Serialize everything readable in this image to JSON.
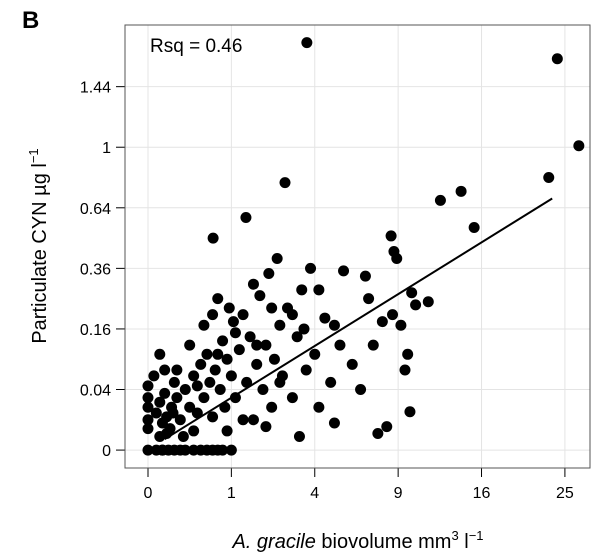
{
  "chart_data": {
    "type": "scatter",
    "panel_label": "B",
    "annotation": "Rsq = 0.46",
    "ylabel_parts": [
      "Particulate CYN µg l",
      "−1"
    ],
    "xlabel_parts": [
      "A. gracile",
      " biovolume mm",
      "3",
      " l",
      "−1"
    ],
    "scale": "sqrt",
    "grid": true,
    "color": "#000000",
    "xlim": [
      -0.076,
      28.1
    ],
    "ylim": [
      -0.0035,
      1.97
    ],
    "xticks": [
      0,
      1,
      4,
      9,
      16,
      25
    ],
    "yticks": [
      0,
      0.04,
      0.16,
      0.36,
      0.64,
      1,
      1.44
    ],
    "series": [
      {
        "type": "scatter",
        "x": [
          0,
          0.01,
          0.03,
          0.06,
          0.1,
          0.15,
          0.2,
          0.3,
          0.4,
          0.5,
          0.6,
          0.7,
          0.8,
          1.0,
          3.3,
          0.02,
          0.05,
          0,
          0,
          0,
          0,
          0,
          0.005,
          0.01,
          0.02,
          0.03,
          0.04,
          0.05,
          0.08,
          0.1,
          0.12,
          0.15,
          0.2,
          0.25,
          0.3,
          0.35,
          0.4,
          0.45,
          0.5,
          0.55,
          0.6,
          0.65,
          0.7,
          0.75,
          0.8,
          0.85,
          0.9,
          1.0,
          1.05,
          1.1,
          1.2,
          1.3,
          1.4,
          1.5,
          1.6,
          1.7,
          1.8,
          1.9,
          2.0,
          2.1,
          2.2,
          2.3,
          2.4,
          2.5,
          2.6,
          2.8,
          3.0,
          3.2,
          3.4,
          3.6,
          3.8,
          4.0,
          4.2,
          4.5,
          4.8,
          5.0,
          5.3,
          5.5,
          6.0,
          6.5,
          6.8,
          7.0,
          7.3,
          7.6,
          7.9,
          8.2,
          8.6,
          8.9,
          9.2,
          9.5,
          10.0,
          10.3,
          11.3,
          0.61,
          1.38,
          2.7,
          9.87,
          9.7,
          8.7,
          3.63,
          24.1,
          26.7,
          23.1,
          14.1,
          12.3,
          15.3,
          8.5,
          0.25,
          0.3,
          0.12,
          0.18,
          0.35,
          0.6,
          0.9,
          1.1,
          1.3,
          1.6,
          2.0,
          2.5,
          3.0,
          3.5,
          4.2,
          5.0,
          2.2,
          1.7,
          0.95,
          0.7,
          0.45,
          0.04,
          0.02,
          0.03,
          0.07,
          0.09
        ],
        "values": [
          0,
          0,
          0,
          0,
          0,
          0,
          0,
          0,
          0,
          0,
          0,
          0,
          0,
          0,
          0.002,
          0.002,
          0.003,
          0.005,
          0.01,
          0.02,
          0.03,
          0.045,
          0.06,
          0.015,
          0.025,
          0.008,
          0.035,
          0.012,
          0.02,
          0.05,
          0.03,
          0.01,
          0.04,
          0.02,
          0.06,
          0.015,
          0.08,
          0.03,
          0.1,
          0.05,
          0.012,
          0.07,
          0.25,
          0.04,
          0.13,
          0.02,
          0.09,
          0.06,
          0.18,
          0.03,
          0.11,
          0.2,
          0.05,
          0.14,
          0.01,
          0.08,
          0.26,
          0.04,
          0.12,
          0.34,
          0.02,
          0.09,
          0.4,
          0.17,
          0.06,
          0.22,
          0.03,
          0.14,
          0.28,
          0.07,
          0.36,
          0.1,
          0.02,
          0.19,
          0.05,
          0.17,
          0.12,
          0.35,
          0.08,
          0.04,
          0.33,
          0.25,
          0.12,
          0.003,
          0.18,
          0.006,
          0.2,
          0.4,
          0.17,
          0.07,
          0.27,
          0.23,
          0.24,
          0.49,
          0.59,
          0.78,
          0.016,
          0.1,
          0.43,
          1.81,
          1.67,
          1.01,
          0.81,
          0.73,
          0.68,
          0.54,
          0.5,
          0.12,
          0.004,
          0.07,
          0.002,
          0.045,
          0.2,
          0.004,
          0.15,
          0.01,
          0.3,
          0.006,
          0.05,
          0.2,
          0.16,
          0.28,
          0.008,
          0.22,
          0.12,
          0.22,
          0.1,
          0.17,
          0.07,
          0.1,
          0,
          0.005,
          0.015
        ]
      },
      {
        "type": "line",
        "color": "#000000",
        "x": [
          0.04,
          23.5
        ],
        "values": [
          0.0013,
          0.69
        ]
      }
    ]
  }
}
